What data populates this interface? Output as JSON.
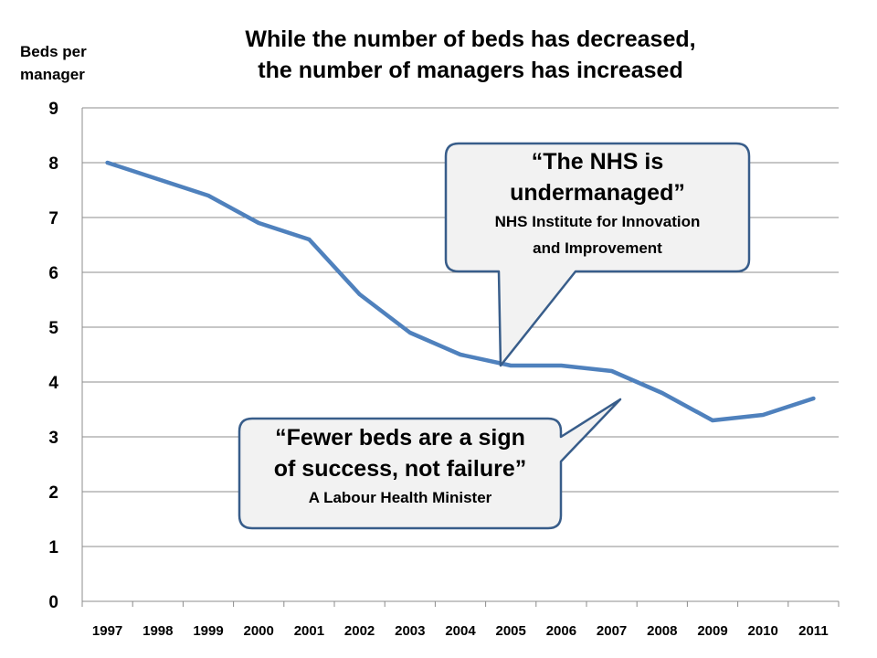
{
  "chart_data": {
    "type": "line",
    "title_lines": [
      "While the number of beds has decreased,",
      "the number of managers has increased"
    ],
    "ylabel_lines": [
      "Beds per",
      "manager"
    ],
    "xlabel": "",
    "categories": [
      "1997",
      "1998",
      "1999",
      "2000",
      "2001",
      "2002",
      "2003",
      "2004",
      "2005",
      "2006",
      "2007",
      "2008",
      "2009",
      "2010",
      "2011"
    ],
    "series": [
      {
        "values": [
          8.0,
          7.7,
          7.4,
          6.9,
          6.6,
          5.6,
          4.9,
          4.5,
          4.3,
          4.3,
          4.2,
          3.8,
          3.3,
          3.4,
          3.7
        ]
      }
    ],
    "ylim": [
      0,
      9
    ],
    "yticks": [
      0,
      1,
      2,
      3,
      4,
      5,
      6,
      7,
      8,
      9
    ],
    "grid": true,
    "legend": "none",
    "line_color": "#4F81BD",
    "annotations": [
      {
        "quote_lines": [
          "“The NHS is",
          "undermanaged”"
        ],
        "attribution_lines": [
          "NHS Institute for Innovation",
          "and Improvement"
        ],
        "points_to": "2005"
      },
      {
        "quote_lines": [
          "“Fewer beds are a sign",
          "of success, not failure”"
        ],
        "attribution_lines": [
          "A Labour Health Minister"
        ],
        "points_to": "2007"
      }
    ]
  }
}
